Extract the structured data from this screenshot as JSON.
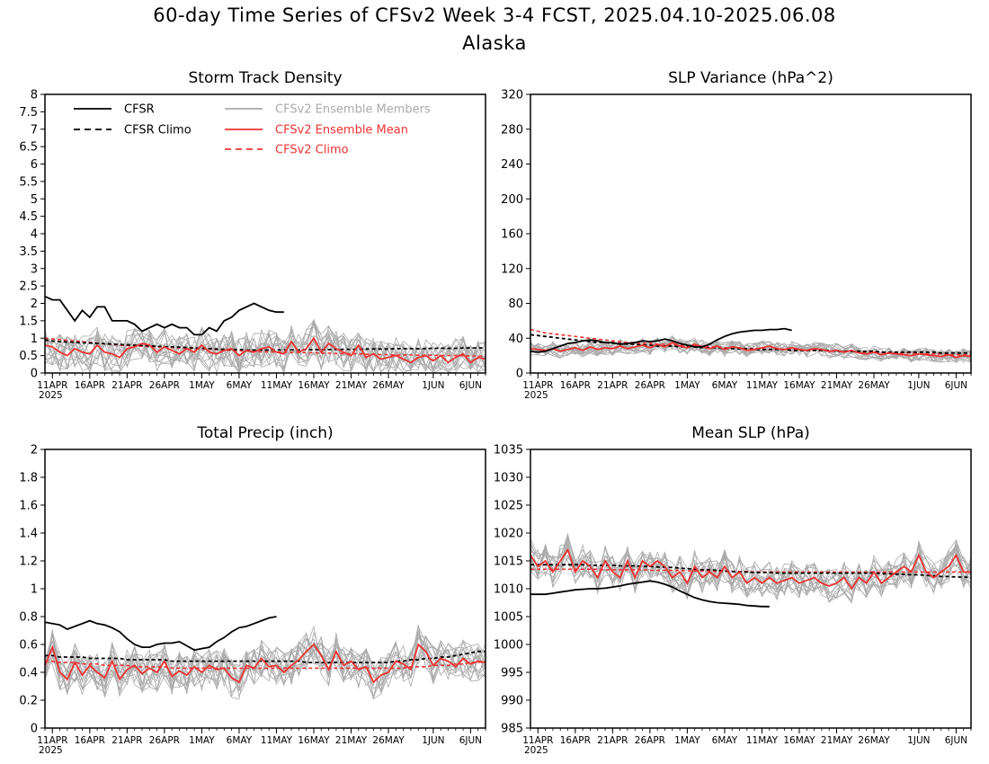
{
  "figure": {
    "title_line1": "60-day Time Series of CFSv2 Week 3-4 FCST, 2025.04.10-2025.06.08",
    "title_line2": "Alaska"
  },
  "legend": [
    {
      "label": "CFSR",
      "color": "#000000",
      "dash": false
    },
    {
      "label": "CFSR Climo",
      "color": "#000000",
      "dash": true
    },
    {
      "label": "CFSv2 Ensemble Members",
      "color": "#aaaaaa",
      "dash": false
    },
    {
      "label": "CFSv2 Ensemble Mean",
      "color": "#ee3333",
      "dash": false
    },
    {
      "label": "CFSv2 Climo",
      "color": "#ee3333",
      "dash": true
    }
  ],
  "x_axis": {
    "tick_labels": [
      "11APR",
      "16APR",
      "21APR",
      "26APR",
      "1MAY",
      "6MAY",
      "11MAY",
      "16MAY",
      "21MAY",
      "26MAY",
      "1JUN",
      "6JUN"
    ],
    "tick_days": [
      1,
      6,
      11,
      16,
      21,
      26,
      31,
      36,
      41,
      46,
      52,
      57
    ],
    "year_label": "2025",
    "range_days": [
      0,
      59
    ]
  },
  "chart_data": [
    {
      "type": "line",
      "title": "Storm Track Density",
      "ylim": [
        0,
        8
      ],
      "yticks": [
        "0",
        "0.5",
        "1",
        "1.5",
        "2",
        "2.5",
        "3",
        "3.5",
        "4",
        "4.5",
        "5",
        "5.5",
        "6",
        "6.5",
        "7",
        "7.5",
        "8"
      ],
      "show_legend": true,
      "series": {
        "cfsr": [
          2.2,
          2.1,
          2.1,
          1.8,
          1.5,
          1.8,
          1.6,
          1.9,
          1.9,
          1.5,
          1.5,
          1.5,
          1.4,
          1.2,
          1.3,
          1.4,
          1.3,
          1.4,
          1.3,
          1.3,
          1.1,
          1.1,
          1.3,
          1.2,
          1.5,
          1.6,
          1.8,
          1.9,
          2.0,
          1.9,
          1.8,
          1.75,
          1.75
        ],
        "cfsr_climo": [
          0.95,
          0.92,
          0.9,
          0.89,
          0.88,
          0.87,
          0.86,
          0.85,
          0.84,
          0.83,
          0.82,
          0.81,
          0.8,
          0.79,
          0.78,
          0.77,
          0.76,
          0.75,
          0.74,
          0.73,
          0.72,
          0.71,
          0.7,
          0.69,
          0.68,
          0.67,
          0.67,
          0.66,
          0.66,
          0.66,
          0.66,
          0.66,
          0.66,
          0.66,
          0.66,
          0.67,
          0.67,
          0.67,
          0.67,
          0.68,
          0.68,
          0.68,
          0.68,
          0.69,
          0.69,
          0.69,
          0.69,
          0.7,
          0.7,
          0.7,
          0.7,
          0.7,
          0.71,
          0.71,
          0.71,
          0.71,
          0.72,
          0.72,
          0.72,
          0.72
        ],
        "cfsv2_climo": [
          1.0,
          0.98,
          0.96,
          0.94,
          0.92,
          0.9,
          0.88,
          0.86,
          0.84,
          0.82,
          0.8,
          0.79,
          0.78,
          0.77,
          0.76,
          0.75,
          0.74,
          0.73,
          0.72,
          0.71,
          0.7,
          0.69,
          0.68,
          0.67,
          0.66,
          0.65,
          0.64,
          0.63,
          0.62,
          0.61,
          0.61,
          0.6,
          0.6,
          0.59,
          0.59,
          0.58,
          0.58,
          0.57,
          0.57,
          0.56,
          0.56,
          0.55,
          0.55,
          0.54,
          0.54,
          0.53,
          0.53,
          0.52,
          0.52,
          0.52,
          0.51,
          0.51,
          0.51,
          0.5,
          0.5,
          0.5,
          0.5,
          0.49,
          0.49,
          0.49
        ],
        "ens_mean": [
          0.8,
          0.75,
          0.6,
          0.5,
          0.7,
          0.6,
          0.55,
          0.8,
          0.6,
          0.55,
          0.45,
          0.7,
          0.75,
          0.85,
          0.8,
          0.6,
          0.75,
          0.65,
          0.55,
          0.7,
          0.6,
          0.8,
          0.6,
          0.55,
          0.65,
          0.7,
          0.5,
          0.65,
          0.6,
          0.7,
          0.75,
          0.6,
          0.55,
          0.9,
          0.6,
          0.7,
          1.0,
          0.6,
          0.85,
          0.7,
          0.6,
          0.5,
          0.8,
          0.45,
          0.55,
          0.4,
          0.45,
          0.5,
          0.4,
          0.3,
          0.45,
          0.5,
          0.35,
          0.5,
          0.3,
          0.45,
          0.55,
          0.3,
          0.45,
          0.4
        ],
        "members_n": 16,
        "members_spread": 0.55,
        "members_floor": 0
      }
    },
    {
      "type": "line",
      "title": "SLP Variance (hPa^2)",
      "ylim": [
        0,
        320
      ],
      "yticks": [
        "0",
        "40",
        "80",
        "120",
        "160",
        "200",
        "240",
        "280",
        "320"
      ],
      "show_legend": false,
      "series": {
        "cfsr": [
          25,
          24,
          25,
          28,
          31,
          34,
          35,
          37,
          38,
          37,
          35,
          35,
          33,
          34,
          35,
          37,
          36,
          37,
          39,
          37,
          34,
          32,
          30,
          30,
          33,
          38,
          42,
          45,
          47,
          48,
          49,
          49,
          50,
          50,
          51,
          49
        ],
        "cfsr_climo": [
          44,
          43,
          42,
          41,
          40,
          39,
          38,
          37,
          36,
          35,
          35,
          34,
          34,
          33,
          33,
          32,
          32,
          31,
          31,
          31,
          30,
          30,
          30,
          29,
          29,
          29,
          28,
          28,
          28,
          28,
          27,
          27,
          27,
          27,
          27,
          26,
          26,
          26,
          26,
          26,
          26,
          25,
          25,
          25,
          25,
          25,
          25,
          24,
          24,
          24,
          24,
          24,
          24,
          24,
          24,
          23,
          23,
          23,
          23,
          23
        ],
        "cfsv2_climo": [
          50,
          48,
          46,
          45,
          44,
          43,
          42,
          41,
          40,
          39,
          38,
          37,
          36,
          35,
          35,
          34,
          34,
          33,
          33,
          32,
          32,
          31,
          31,
          30,
          30,
          30,
          29,
          29,
          29,
          28,
          28,
          28,
          27,
          27,
          27,
          27,
          26,
          26,
          26,
          26,
          25,
          25,
          25,
          25,
          24,
          24,
          24,
          24,
          23,
          23,
          23,
          23,
          22,
          22,
          22,
          22,
          21,
          21,
          21,
          21
        ],
        "ens_mean": [
          28,
          27,
          26,
          28,
          25,
          27,
          29,
          26,
          30,
          27,
          29,
          28,
          31,
          28,
          30,
          32,
          29,
          33,
          30,
          35,
          31,
          29,
          33,
          30,
          28,
          31,
          27,
          30,
          29,
          26,
          27,
          29,
          31,
          28,
          27,
          29,
          27,
          26,
          28,
          27,
          25,
          26,
          24,
          26,
          23,
          22,
          24,
          21,
          23,
          22,
          21,
          20,
          22,
          21,
          20,
          19,
          21,
          18,
          20,
          19
        ],
        "members_n": 16,
        "members_spread": 8,
        "members_floor": 5
      }
    },
    {
      "type": "line",
      "title": "Total Precip (inch)",
      "ylim": [
        0,
        2
      ],
      "yticks": [
        "0",
        "0.2",
        "0.4",
        "0.6",
        "0.8",
        "1",
        "1.2",
        "1.4",
        "1.6",
        "1.8",
        "2"
      ],
      "show_legend": false,
      "series": {
        "cfsr": [
          0.76,
          0.75,
          0.74,
          0.71,
          0.73,
          0.75,
          0.77,
          0.75,
          0.74,
          0.72,
          0.69,
          0.64,
          0.6,
          0.58,
          0.58,
          0.6,
          0.61,
          0.61,
          0.62,
          0.59,
          0.56,
          0.57,
          0.58,
          0.62,
          0.65,
          0.69,
          0.72,
          0.73,
          0.75,
          0.77,
          0.79,
          0.8
        ],
        "cfsr_climo": [
          0.52,
          0.52,
          0.51,
          0.51,
          0.51,
          0.51,
          0.5,
          0.5,
          0.5,
          0.5,
          0.5,
          0.49,
          0.49,
          0.49,
          0.49,
          0.49,
          0.49,
          0.48,
          0.48,
          0.48,
          0.48,
          0.48,
          0.48,
          0.48,
          0.48,
          0.48,
          0.48,
          0.48,
          0.48,
          0.48,
          0.48,
          0.48,
          0.48,
          0.48,
          0.48,
          0.47,
          0.47,
          0.47,
          0.47,
          0.47,
          0.47,
          0.47,
          0.47,
          0.47,
          0.47,
          0.47,
          0.47,
          0.48,
          0.48,
          0.49,
          0.49,
          0.5,
          0.5,
          0.51,
          0.51,
          0.52,
          0.53,
          0.54,
          0.55,
          0.55
        ],
        "cfsv2_climo": [
          0.48,
          0.48,
          0.47,
          0.47,
          0.47,
          0.46,
          0.46,
          0.46,
          0.45,
          0.45,
          0.45,
          0.45,
          0.44,
          0.44,
          0.44,
          0.44,
          0.44,
          0.43,
          0.43,
          0.43,
          0.43,
          0.43,
          0.43,
          0.43,
          0.43,
          0.43,
          0.43,
          0.43,
          0.43,
          0.43,
          0.43,
          0.43,
          0.43,
          0.43,
          0.43,
          0.43,
          0.43,
          0.43,
          0.43,
          0.43,
          0.43,
          0.43,
          0.43,
          0.43,
          0.43,
          0.43,
          0.43,
          0.43,
          0.43,
          0.44,
          0.44,
          0.44,
          0.45,
          0.45,
          0.45,
          0.46,
          0.46,
          0.47,
          0.47,
          0.48
        ],
        "ens_mean": [
          0.45,
          0.58,
          0.4,
          0.35,
          0.47,
          0.38,
          0.45,
          0.4,
          0.36,
          0.48,
          0.35,
          0.42,
          0.45,
          0.39,
          0.43,
          0.4,
          0.48,
          0.37,
          0.41,
          0.38,
          0.44,
          0.4,
          0.45,
          0.42,
          0.43,
          0.36,
          0.33,
          0.45,
          0.43,
          0.5,
          0.44,
          0.45,
          0.4,
          0.45,
          0.49,
          0.55,
          0.6,
          0.52,
          0.42,
          0.55,
          0.45,
          0.48,
          0.42,
          0.44,
          0.33,
          0.38,
          0.4,
          0.48,
          0.46,
          0.42,
          0.6,
          0.55,
          0.45,
          0.5,
          0.48,
          0.44,
          0.5,
          0.46,
          0.48,
          0.47
        ],
        "members_n": 16,
        "members_spread": 0.14,
        "members_floor": 0.08
      }
    },
    {
      "type": "line",
      "title": "Mean SLP (hPa)",
      "ylim": [
        985,
        1035
      ],
      "yticks": [
        "985",
        "990",
        "995",
        "1000",
        "1005",
        "1010",
        "1015",
        "1020",
        "1025",
        "1030",
        "1035"
      ],
      "show_legend": false,
      "series": {
        "cfsr": [
          1009,
          1009,
          1009,
          1009.2,
          1009.4,
          1009.6,
          1009.8,
          1009.9,
          1010,
          1010,
          1010.1,
          1010.3,
          1010.5,
          1010.8,
          1011,
          1011.2,
          1011.4,
          1011.2,
          1010.8,
          1010.3,
          1009.6,
          1009,
          1008.4,
          1008,
          1007.7,
          1007.5,
          1007.4,
          1007.3,
          1007.2,
          1007,
          1006.9,
          1006.8,
          1006.8
        ],
        "cfsr_climo": [
          1014.3,
          1014.3,
          1014.3,
          1014.3,
          1014.3,
          1014.3,
          1014.3,
          1014.3,
          1014.2,
          1014.2,
          1014.2,
          1014.2,
          1014.1,
          1014.1,
          1014.1,
          1014,
          1014,
          1013.9,
          1013.9,
          1013.8,
          1013.7,
          1013.6,
          1013.5,
          1013.4,
          1013.4,
          1013.3,
          1013.2,
          1013.1,
          1013,
          1013,
          1012.9,
          1012.9,
          1012.9,
          1012.8,
          1012.8,
          1012.8,
          1012.8,
          1012.8,
          1012.8,
          1012.8,
          1012.8,
          1012.8,
          1012.8,
          1012.8,
          1012.8,
          1012.8,
          1012.8,
          1012.7,
          1012.7,
          1012.6,
          1012.6,
          1012.5,
          1012.5,
          1012.4,
          1012.3,
          1012.2,
          1012.2,
          1012.1,
          1012.1,
          1012
        ],
        "cfsv2_climo": [
          1013.5,
          1013.5,
          1013.5,
          1013.5,
          1013.5,
          1013.5,
          1013.5,
          1013.5,
          1013.5,
          1013.5,
          1013.4,
          1013.4,
          1013.4,
          1013.4,
          1013.4,
          1013.4,
          1013.3,
          1013.3,
          1013.3,
          1013.3,
          1013.3,
          1013.2,
          1013.2,
          1013.2,
          1013.2,
          1013.1,
          1013.1,
          1013.1,
          1013.1,
          1013.1,
          1013,
          1013,
          1013,
          1013,
          1013,
          1013,
          1013,
          1013,
          1013,
          1013,
          1013,
          1013,
          1013,
          1013,
          1013,
          1013,
          1013,
          1013,
          1013,
          1013,
          1013,
          1013,
          1013,
          1013,
          1013,
          1013,
          1013,
          1013,
          1013,
          1013
        ],
        "ens_mean": [
          1016,
          1014,
          1015,
          1013,
          1015,
          1017,
          1013,
          1015,
          1014,
          1012,
          1015,
          1013,
          1012,
          1015,
          1012,
          1015,
          1014,
          1015,
          1014,
          1012,
          1013,
          1011,
          1014,
          1012,
          1013,
          1012,
          1014,
          1012,
          1013,
          1011,
          1012,
          1011,
          1012,
          1011,
          1011.5,
          1012,
          1011,
          1011.5,
          1012,
          1011,
          1010.5,
          1011,
          1012,
          1010,
          1012,
          1011,
          1013,
          1011,
          1012,
          1013,
          1014,
          1013,
          1016,
          1013,
          1012,
          1013,
          1014,
          1016,
          1013,
          1013
        ],
        "members_n": 16,
        "members_spread": 3,
        "members_floor": 985
      }
    }
  ]
}
